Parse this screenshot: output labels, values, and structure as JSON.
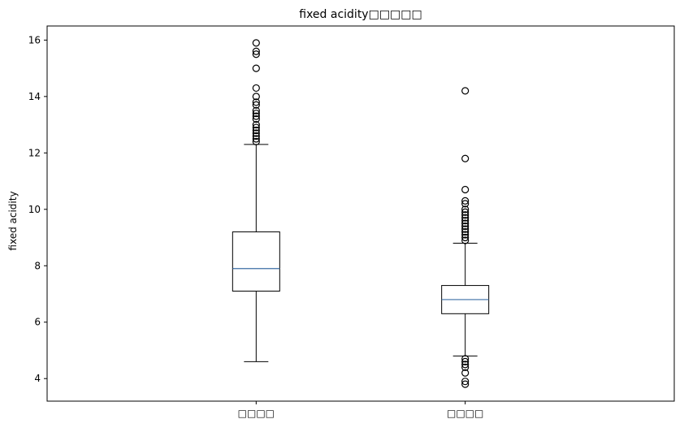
{
  "chart_data": {
    "type": "boxplot",
    "title": "fixed acidity□□□□□",
    "ylabel": "fixed acidity",
    "xlabel": "",
    "ylim": [
      3.2,
      16.5
    ],
    "yticks": [
      4,
      6,
      8,
      10,
      12,
      14,
      16
    ],
    "grid": false,
    "median_color": "#3b6ea5",
    "categories": [
      "□□□□",
      "□□□□"
    ],
    "series": [
      {
        "whisker_low": 4.6,
        "q1": 7.1,
        "median": 7.9,
        "q3": 9.2,
        "whisker_high": 12.3,
        "outliers": [
          12.4,
          12.5,
          12.6,
          12.7,
          12.8,
          12.9,
          13.0,
          13.2,
          13.3,
          13.4,
          13.5,
          13.7,
          13.8,
          14.0,
          14.3,
          15.0,
          15.5,
          15.6,
          15.9
        ]
      },
      {
        "whisker_low": 4.8,
        "q1": 6.3,
        "median": 6.8,
        "q3": 7.3,
        "whisker_high": 8.8,
        "outliers": [
          3.8,
          3.9,
          4.2,
          4.4,
          4.5,
          4.6,
          4.7,
          8.9,
          9.0,
          9.1,
          9.2,
          9.3,
          9.4,
          9.5,
          9.6,
          9.7,
          9.8,
          9.9,
          10.0,
          10.2,
          10.3,
          10.7,
          11.8,
          14.2
        ]
      }
    ]
  }
}
